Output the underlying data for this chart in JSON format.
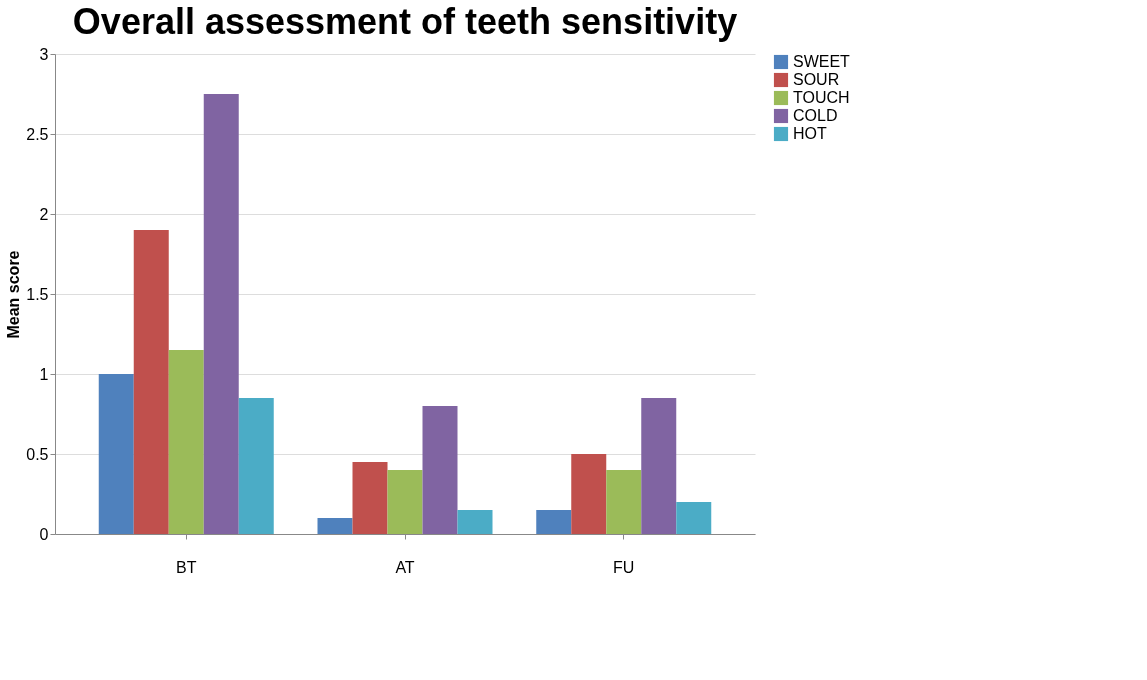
{
  "chart_data": {
    "type": "bar",
    "title": "Overall assessment of teeth sensitivity",
    "ylabel": "Mean score",
    "categories": [
      "BT",
      "AT",
      "FU"
    ],
    "series": [
      {
        "name": "SWEET",
        "color": "#4f81bd",
        "values": [
          1.0,
          0.1,
          0.15
        ]
      },
      {
        "name": "SOUR",
        "color": "#c0504d",
        "values": [
          1.9,
          0.45,
          0.5
        ]
      },
      {
        "name": "TOUCH",
        "color": "#9bbb59",
        "values": [
          1.15,
          0.4,
          0.4
        ]
      },
      {
        "name": "COLD",
        "color": "#8064a2",
        "values": [
          2.75,
          0.8,
          0.85
        ]
      },
      {
        "name": "HOT",
        "color": "#4bacc6",
        "values": [
          0.85,
          0.15,
          0.2
        ]
      }
    ],
    "ylim": [
      0,
      3
    ],
    "yticks": [
      0,
      0.5,
      1,
      1.5,
      2,
      2.5,
      3
    ],
    "grid": "y",
    "legend": "right"
  }
}
